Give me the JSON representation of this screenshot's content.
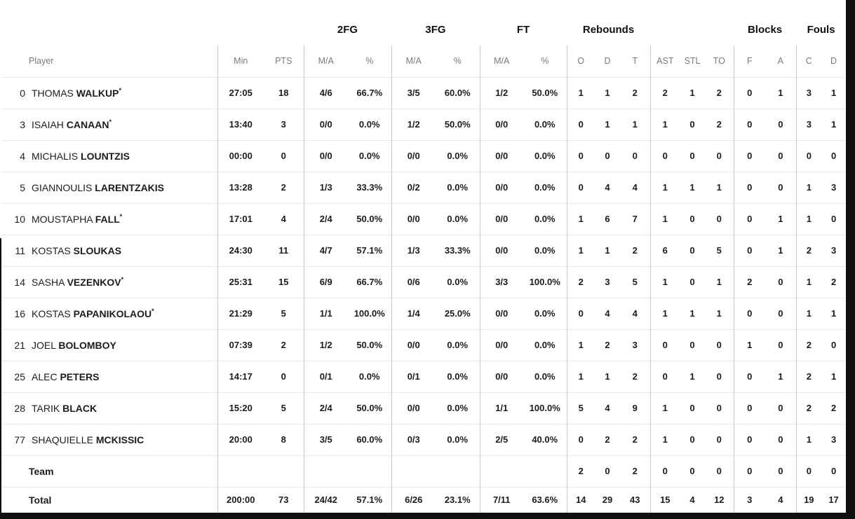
{
  "colors": {
    "edge": "#101010",
    "text": "#1c1c1c",
    "muted_header": "#7a7a7a",
    "divider_strong": "#c9c9c9",
    "divider_soft": "#e9e9e9",
    "background": "#ffffff"
  },
  "table": {
    "group_headers": [
      {
        "label": "",
        "span": 3
      },
      {
        "label": "2FG",
        "span": 2
      },
      {
        "label": "3FG",
        "span": 2
      },
      {
        "label": "FT",
        "span": 2
      },
      {
        "label": "Rebounds",
        "span": 3
      },
      {
        "label": "",
        "span": 3
      },
      {
        "label": "Blocks",
        "span": 2
      },
      {
        "label": "Fouls",
        "span": 2
      }
    ],
    "columns": [
      "Player",
      "Min",
      "PTS",
      "M/A",
      "%",
      "M/A",
      "%",
      "M/A",
      "%",
      "O",
      "D",
      "T",
      "AST",
      "STL",
      "TO",
      "F",
      "A",
      "C",
      "D"
    ],
    "stat_keys": [
      "min",
      "pts",
      "fg2",
      "fg2p",
      "fg3",
      "fg3p",
      "ft",
      "ftp",
      "reb_o",
      "reb_d",
      "reb_t",
      "ast",
      "stl",
      "to",
      "blk_f",
      "blk_a",
      "foul_c",
      "foul_d"
    ],
    "starter_marker": "*",
    "players": [
      {
        "number": "0",
        "first": "THOMAS",
        "last": "WALKUP",
        "starter": true,
        "min": "27:05",
        "pts": "18",
        "fg2": "4/6",
        "fg2p": "66.7%",
        "fg3": "3/5",
        "fg3p": "60.0%",
        "ft": "1/2",
        "ftp": "50.0%",
        "reb_o": "1",
        "reb_d": "1",
        "reb_t": "2",
        "ast": "2",
        "stl": "1",
        "to": "2",
        "blk_f": "0",
        "blk_a": "1",
        "foul_c": "3",
        "foul_d": "1"
      },
      {
        "number": "3",
        "first": "ISAIAH",
        "last": "CANAAN",
        "starter": true,
        "min": "13:40",
        "pts": "3",
        "fg2": "0/0",
        "fg2p": "0.0%",
        "fg3": "1/2",
        "fg3p": "50.0%",
        "ft": "0/0",
        "ftp": "0.0%",
        "reb_o": "0",
        "reb_d": "1",
        "reb_t": "1",
        "ast": "1",
        "stl": "0",
        "to": "2",
        "blk_f": "0",
        "blk_a": "0",
        "foul_c": "3",
        "foul_d": "1"
      },
      {
        "number": "4",
        "first": "MICHALIS",
        "last": "LOUNTZIS",
        "starter": false,
        "min": "00:00",
        "pts": "0",
        "fg2": "0/0",
        "fg2p": "0.0%",
        "fg3": "0/0",
        "fg3p": "0.0%",
        "ft": "0/0",
        "ftp": "0.0%",
        "reb_o": "0",
        "reb_d": "0",
        "reb_t": "0",
        "ast": "0",
        "stl": "0",
        "to": "0",
        "blk_f": "0",
        "blk_a": "0",
        "foul_c": "0",
        "foul_d": "0"
      },
      {
        "number": "5",
        "first": "GIANNOULIS",
        "last": "LARENTZAKIS",
        "starter": false,
        "min": "13:28",
        "pts": "2",
        "fg2": "1/3",
        "fg2p": "33.3%",
        "fg3": "0/2",
        "fg3p": "0.0%",
        "ft": "0/0",
        "ftp": "0.0%",
        "reb_o": "0",
        "reb_d": "4",
        "reb_t": "4",
        "ast": "1",
        "stl": "1",
        "to": "1",
        "blk_f": "0",
        "blk_a": "0",
        "foul_c": "1",
        "foul_d": "3"
      },
      {
        "number": "10",
        "first": "MOUSTAPHA",
        "last": "FALL",
        "starter": true,
        "min": "17:01",
        "pts": "4",
        "fg2": "2/4",
        "fg2p": "50.0%",
        "fg3": "0/0",
        "fg3p": "0.0%",
        "ft": "0/0",
        "ftp": "0.0%",
        "reb_o": "1",
        "reb_d": "6",
        "reb_t": "7",
        "ast": "1",
        "stl": "0",
        "to": "0",
        "blk_f": "0",
        "blk_a": "1",
        "foul_c": "1",
        "foul_d": "0"
      },
      {
        "number": "11",
        "first": "KOSTAS",
        "last": "SLOUKAS",
        "starter": false,
        "min": "24:30",
        "pts": "11",
        "fg2": "4/7",
        "fg2p": "57.1%",
        "fg3": "1/3",
        "fg3p": "33.3%",
        "ft": "0/0",
        "ftp": "0.0%",
        "reb_o": "1",
        "reb_d": "1",
        "reb_t": "2",
        "ast": "6",
        "stl": "0",
        "to": "5",
        "blk_f": "0",
        "blk_a": "1",
        "foul_c": "2",
        "foul_d": "3"
      },
      {
        "number": "14",
        "first": "SASHA",
        "last": "VEZENKOV",
        "starter": true,
        "min": "25:31",
        "pts": "15",
        "fg2": "6/9",
        "fg2p": "66.7%",
        "fg3": "0/6",
        "fg3p": "0.0%",
        "ft": "3/3",
        "ftp": "100.0%",
        "reb_o": "2",
        "reb_d": "3",
        "reb_t": "5",
        "ast": "1",
        "stl": "0",
        "to": "1",
        "blk_f": "2",
        "blk_a": "0",
        "foul_c": "1",
        "foul_d": "2"
      },
      {
        "number": "16",
        "first": "KOSTAS",
        "last": "PAPANIKOLAOU",
        "starter": true,
        "min": "21:29",
        "pts": "5",
        "fg2": "1/1",
        "fg2p": "100.0%",
        "fg3": "1/4",
        "fg3p": "25.0%",
        "ft": "0/0",
        "ftp": "0.0%",
        "reb_o": "0",
        "reb_d": "4",
        "reb_t": "4",
        "ast": "1",
        "stl": "1",
        "to": "1",
        "blk_f": "0",
        "blk_a": "0",
        "foul_c": "1",
        "foul_d": "1"
      },
      {
        "number": "21",
        "first": "JOEL",
        "last": "BOLOMBOY",
        "starter": false,
        "min": "07:39",
        "pts": "2",
        "fg2": "1/2",
        "fg2p": "50.0%",
        "fg3": "0/0",
        "fg3p": "0.0%",
        "ft": "0/0",
        "ftp": "0.0%",
        "reb_o": "1",
        "reb_d": "2",
        "reb_t": "3",
        "ast": "0",
        "stl": "0",
        "to": "0",
        "blk_f": "1",
        "blk_a": "0",
        "foul_c": "2",
        "foul_d": "0"
      },
      {
        "number": "25",
        "first": "ALEC",
        "last": "PETERS",
        "starter": false,
        "min": "14:17",
        "pts": "0",
        "fg2": "0/1",
        "fg2p": "0.0%",
        "fg3": "0/1",
        "fg3p": "0.0%",
        "ft": "0/0",
        "ftp": "0.0%",
        "reb_o": "1",
        "reb_d": "1",
        "reb_t": "2",
        "ast": "0",
        "stl": "1",
        "to": "0",
        "blk_f": "0",
        "blk_a": "1",
        "foul_c": "2",
        "foul_d": "1"
      },
      {
        "number": "28",
        "first": "TARIK",
        "last": "BLACK",
        "starter": false,
        "min": "15:20",
        "pts": "5",
        "fg2": "2/4",
        "fg2p": "50.0%",
        "fg3": "0/0",
        "fg3p": "0.0%",
        "ft": "1/1",
        "ftp": "100.0%",
        "reb_o": "5",
        "reb_d": "4",
        "reb_t": "9",
        "ast": "1",
        "stl": "0",
        "to": "0",
        "blk_f": "0",
        "blk_a": "0",
        "foul_c": "2",
        "foul_d": "2"
      },
      {
        "number": "77",
        "first": "SHAQUIELLE",
        "last": "MCKISSIC",
        "starter": false,
        "min": "20:00",
        "pts": "8",
        "fg2": "3/5",
        "fg2p": "60.0%",
        "fg3": "0/3",
        "fg3p": "0.0%",
        "ft": "2/5",
        "ftp": "40.0%",
        "reb_o": "0",
        "reb_d": "2",
        "reb_t": "2",
        "ast": "1",
        "stl": "0",
        "to": "0",
        "blk_f": "0",
        "blk_a": "0",
        "foul_c": "1",
        "foul_d": "3"
      }
    ],
    "team_row": {
      "label": "Team",
      "min": "",
      "pts": "",
      "fg2": "",
      "fg2p": "",
      "fg3": "",
      "fg3p": "",
      "ft": "",
      "ftp": "",
      "reb_o": "2",
      "reb_d": "0",
      "reb_t": "2",
      "ast": "0",
      "stl": "0",
      "to": "0",
      "blk_f": "0",
      "blk_a": "0",
      "foul_c": "0",
      "foul_d": "0"
    },
    "total_row": {
      "label": "Total",
      "min": "200:00",
      "pts": "73",
      "fg2": "24/42",
      "fg2p": "57.1%",
      "fg3": "6/26",
      "fg3p": "23.1%",
      "ft": "7/11",
      "ftp": "63.6%",
      "reb_o": "14",
      "reb_d": "29",
      "reb_t": "43",
      "ast": "15",
      "stl": "4",
      "to": "12",
      "blk_f": "3",
      "blk_a": "4",
      "foul_c": "19",
      "foul_d": "17"
    }
  }
}
